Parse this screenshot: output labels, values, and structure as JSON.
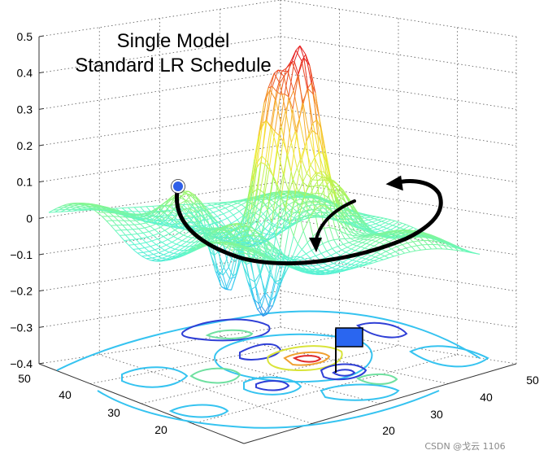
{
  "chart_data": {
    "type": "surface3d",
    "title_lines": [
      "Single Model",
      "Standard LR Schedule"
    ],
    "z_axis": {
      "ticks": [
        "0.5",
        "0.4",
        "0.3",
        "0.2",
        "0.1",
        "0",
        "−0.1",
        "−0.2",
        "−0.3",
        "−0.4"
      ],
      "range": [
        -0.4,
        0.5
      ]
    },
    "x_axis": {
      "ticks": [
        "20",
        "30",
        "40",
        "50"
      ]
    },
    "y_axis": {
      "ticks": [
        "20",
        "30",
        "40",
        "50"
      ]
    },
    "grid": true,
    "surface_colormap": [
      "#1c2ad9",
      "#35c9f0",
      "#5ef7cf",
      "#a7f55a",
      "#f5e936",
      "#f59a2b",
      "#e62020"
    ],
    "contour_colors": [
      "#2f3fd6",
      "#35c3f0",
      "#6fe0a0",
      "#d9e43a",
      "#f0a030",
      "#e02a2a"
    ],
    "trajectory": {
      "start_marker": "circle",
      "end_marker": "arrow"
    },
    "goal_marker": "flag-icon"
  },
  "watermark": "CSDN @戈云 1106"
}
